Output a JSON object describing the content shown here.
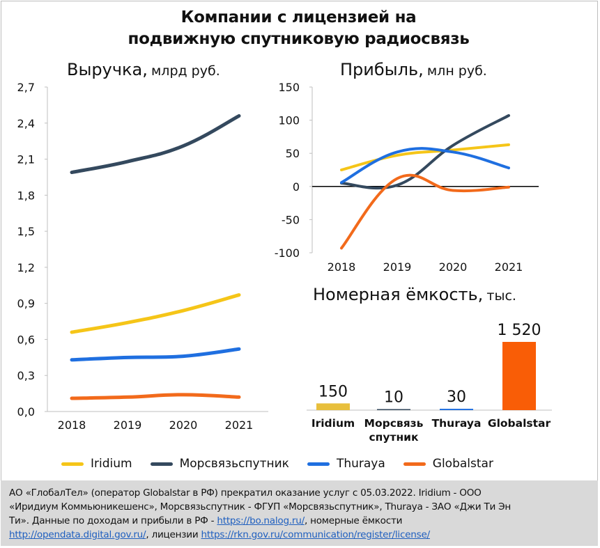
{
  "title_line1": "Компании с лицензией на",
  "title_line2": "подвижную спутниковую радиосвязь",
  "revenue": {
    "title": "Выручка,",
    "unit": "млрд руб."
  },
  "profit": {
    "title": "Прибыль,",
    "unit": "млн руб."
  },
  "capacity": {
    "title": "Номерная ёмкость,",
    "unit": "тыс."
  },
  "legend": [
    {
      "name": "Iridium",
      "color": "#f5c518"
    },
    {
      "name": "Морсвязьспутник",
      "color": "#34495e"
    },
    {
      "name": "Thuraya",
      "color": "#1f6fe0"
    },
    {
      "name": "Globalstar",
      "color": "#f26a1b"
    }
  ],
  "chart_data": [
    {
      "type": "line",
      "title": "Выручка, млрд руб.",
      "x": [
        "2018",
        "2019",
        "2020",
        "2021"
      ],
      "yticks": [
        "0,0",
        "0,3",
        "0,6",
        "0,9",
        "1,2",
        "1,5",
        "1,8",
        "2,1",
        "2,4",
        "2,7"
      ],
      "ylim": [
        0,
        2.7
      ],
      "grid": false,
      "series": [
        {
          "name": "Iridium",
          "color": "#f5c518",
          "values": [
            0.66,
            0.74,
            0.84,
            0.97
          ]
        },
        {
          "name": "Морсвязьспутник",
          "color": "#34495e",
          "values": [
            1.99,
            2.08,
            2.21,
            2.46
          ]
        },
        {
          "name": "Thuraya",
          "color": "#1f6fe0",
          "values": [
            0.43,
            0.45,
            0.46,
            0.52
          ]
        },
        {
          "name": "Globalstar",
          "color": "#f26a1b",
          "values": [
            0.11,
            0.12,
            0.14,
            0.12
          ]
        }
      ]
    },
    {
      "type": "line",
      "title": "Прибыль, млн руб.",
      "x": [
        "2018",
        "2019",
        "2020",
        "2021"
      ],
      "yticks": [
        "-100",
        "-50",
        "0",
        "50",
        "100",
        "150"
      ],
      "ylim": [
        -100,
        150
      ],
      "grid": false,
      "series": [
        {
          "name": "Iridium",
          "color": "#f5c518",
          "values": [
            25,
            47,
            55,
            63
          ]
        },
        {
          "name": "Морсвязьспутник",
          "color": "#34495e",
          "values": [
            5,
            2,
            62,
            107
          ]
        },
        {
          "name": "Thuraya",
          "color": "#1f6fe0",
          "values": [
            6,
            52,
            52,
            28
          ]
        },
        {
          "name": "Globalstar",
          "color": "#f26a1b",
          "values": [
            -93,
            12,
            -6,
            -1
          ]
        }
      ]
    },
    {
      "type": "bar",
      "title": "Номерная ёмкость, тыс.",
      "categories": [
        "Iridium",
        "Морсвязь спутник",
        "Thuraya",
        "Globalstar"
      ],
      "values": [
        150,
        10,
        30,
        1520
      ],
      "labels": [
        "150",
        "10",
        "30",
        "1 520"
      ],
      "colors": [
        "#e8bf3c",
        "#34495e",
        "#1f6fe0",
        "#f95d06"
      ]
    }
  ],
  "footnote": {
    "line1": "АО «ГлобалТел» (оператор Globalstar в РФ) прекратил оказание услуг с 05.03.2022. Iridium - ООО",
    "line2": "«Иридиум Коммьюникешенс», Морсвязьспутник - ФГУП «Морсвязьспутник», Thuraya - ЗАО «Джи Ти Эн",
    "line3_start": "Ти». Данные по доходам и прибыли в РФ - ",
    "link1": "https://bo.nalog.ru/",
    "line3_end": ", номерные ёмкости",
    "link2": "http://opendata.digital.gov.ru/",
    "line4_mid": ", лицензии ",
    "link3": "https://rkn.gov.ru/communication/register/license/"
  }
}
